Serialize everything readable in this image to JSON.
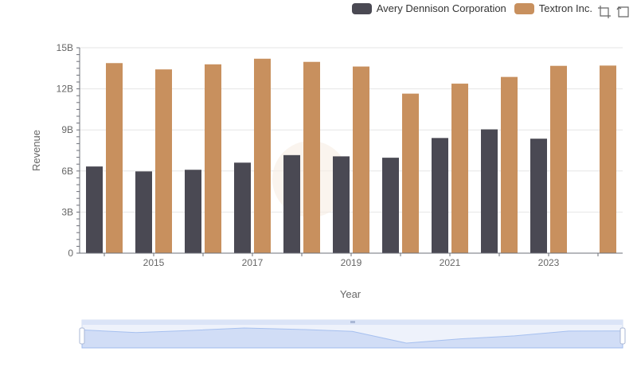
{
  "legend": {
    "items": [
      {
        "label": "Avery Dennison Corporation",
        "color": "#4a4953"
      },
      {
        "label": "Textron Inc.",
        "color": "#c8905e"
      }
    ]
  },
  "toolbox": {
    "icons": [
      "zoom-icon",
      "restore-icon"
    ]
  },
  "chart_data": {
    "type": "bar",
    "xlabel": "Year",
    "ylabel": "Revenue",
    "ylim": [
      0,
      15000000000
    ],
    "yticks": [
      "0",
      "3B",
      "6B",
      "9B",
      "12B",
      "15B"
    ],
    "ytick_values": [
      0,
      3000000000,
      6000000000,
      9000000000,
      12000000000,
      15000000000
    ],
    "categories": [
      "2014",
      "2015",
      "2016",
      "2017",
      "2018",
      "2019",
      "2020",
      "2021",
      "2022",
      "2023",
      "2024"
    ],
    "xtick_labels": [
      "2015",
      "2017",
      "2019",
      "2021",
      "2023"
    ],
    "grid": true,
    "legend_position": "top-right",
    "series": [
      {
        "name": "Avery Dennison Corporation",
        "color": "#4a4953",
        "values": [
          6330000000,
          5970000000,
          6090000000,
          6610000000,
          7160000000,
          7070000000,
          6970000000,
          8410000000,
          9040000000,
          8360000000,
          null
        ]
      },
      {
        "name": "Textron Inc.",
        "color": "#c8905e",
        "values": [
          13880000000,
          13420000000,
          13790000000,
          14200000000,
          13970000000,
          13630000000,
          11650000000,
          12380000000,
          12870000000,
          13680000000,
          13700000000
        ]
      }
    ]
  }
}
